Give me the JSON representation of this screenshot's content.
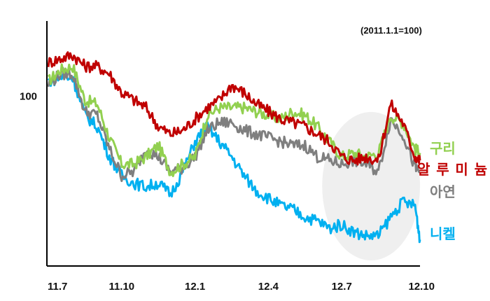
{
  "chart_data": {
    "type": "line",
    "note": "(2011.1.1=100)",
    "y_tick_label": "100",
    "y_tick_value": 100,
    "ylim": [
      55,
      120
    ],
    "x_tick_labels": [
      "11.7",
      "11.10",
      "12.1",
      "12.4",
      "12.7",
      "12.10"
    ],
    "x_ticks_month_index": [
      0,
      3,
      6,
      9,
      12,
      15
    ],
    "x_range_months": [
      0,
      15.2
    ],
    "x": [
      0,
      0.5,
      1,
      1.5,
      2,
      2.5,
      3,
      3.5,
      4,
      4.5,
      5,
      5.5,
      6,
      6.5,
      7,
      7.5,
      8,
      8.5,
      9,
      9.5,
      10,
      10.5,
      11,
      11.5,
      12,
      12.5,
      13,
      13.5,
      14,
      14.5,
      15,
      15.2
    ],
    "highlight_region_months": [
      11.2,
      15.2
    ],
    "grid": false,
    "series": [
      {
        "name": "구리",
        "color": "#92d050",
        "values": [
          104,
          107,
          108,
          99,
          98,
          89,
          82,
          82,
          84,
          87,
          80,
          82,
          84,
          95,
          97,
          97,
          97,
          96,
          95,
          94,
          96,
          95,
          92,
          88,
          84,
          85,
          84,
          85,
          95,
          93,
          86,
          85
        ]
      },
      {
        "name": "알루미늄",
        "color": "#c00000",
        "values": [
          109,
          110,
          111,
          108,
          108,
          106,
          101,
          99,
          97,
          92,
          90,
          91,
          94,
          97,
          99,
          103,
          101,
          98,
          96,
          94,
          93,
          92,
          90,
          88,
          84,
          83,
          84,
          83,
          98,
          93,
          84,
          83
        ]
      },
      {
        "name": "아연",
        "color": "#7f7f7f",
        "values": [
          103,
          106,
          106,
          96,
          95,
          86,
          79,
          80,
          86,
          84,
          80,
          81,
          84,
          91,
          93,
          93,
          91,
          90,
          89,
          88,
          87,
          87,
          84,
          83,
          82,
          83,
          82,
          80,
          94,
          90,
          81,
          80
        ]
      },
      {
        "name": "니켈",
        "color": "#00b0f0",
        "values": [
          104,
          105,
          105,
          95,
          92,
          84,
          79,
          77,
          76,
          77,
          74,
          80,
          88,
          92,
          88,
          84,
          79,
          75,
          73,
          71,
          70,
          68,
          67,
          65,
          66,
          64,
          63,
          63,
          68,
          72,
          71,
          62
        ]
      }
    ]
  }
}
